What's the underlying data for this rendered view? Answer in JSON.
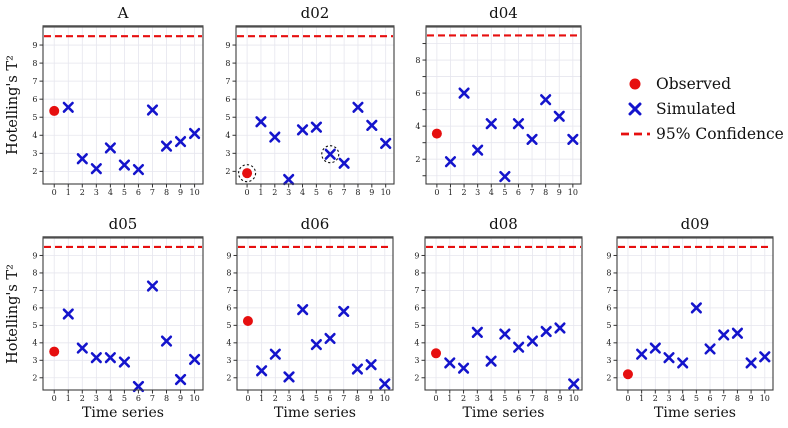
{
  "figure": {
    "background": "#ffffff"
  },
  "legend": {
    "items": [
      {
        "name": "observed",
        "marker": "filled-circle-icon",
        "label": "Observed"
      },
      {
        "name": "simulated",
        "marker": "x-cross-icon",
        "label": "Simulated"
      },
      {
        "name": "confidence",
        "marker": "dashed-line-icon",
        "label": "95% Confidence"
      }
    ]
  },
  "chart_data": {
    "type": "scatter",
    "ylabel": "Hotelling's T²",
    "shared_xlabel": "Time series",
    "confidence_level": "95%",
    "confidence_value": 9.49,
    "xticks": [
      0,
      1,
      2,
      3,
      4,
      5,
      6,
      7,
      8,
      9,
      10
    ],
    "xlim": [
      -0.8,
      10.6
    ],
    "grid": true,
    "legend_position": "right-of-top-row",
    "colors": {
      "observed": "#e60f0f",
      "simulated": "#1414cc",
      "confidence": "#e60f0f",
      "grid": "#e6e6ee",
      "spine": "#3d3d3d"
    },
    "subplots": [
      {
        "id": "A",
        "title": "A",
        "row": 1,
        "observed": 5.35,
        "simulated_x": [
          1,
          2,
          3,
          4,
          5,
          6,
          7,
          8,
          9,
          10
        ],
        "simulated": [
          5.55,
          2.7,
          2.15,
          3.3,
          2.35,
          2.1,
          5.4,
          3.4,
          3.65,
          4.1
        ],
        "ylim": [
          1.3,
          10.0
        ],
        "ytick_values": [
          2,
          3,
          4,
          5,
          6,
          7,
          8,
          9
        ],
        "ytick_labels": [
          "2",
          "3",
          "4",
          "5",
          "6",
          "7",
          "8",
          "9"
        ],
        "xlabel": "",
        "annotated_points": []
      },
      {
        "id": "d02",
        "title": "d02",
        "row": 1,
        "observed": 1.9,
        "simulated_x": [
          1,
          2,
          3,
          4,
          5,
          6,
          7,
          8,
          9,
          10
        ],
        "simulated": [
          4.75,
          3.9,
          1.55,
          4.3,
          4.45,
          2.95,
          2.45,
          5.55,
          4.55,
          3.55
        ],
        "ylim": [
          1.3,
          10.0
        ],
        "ytick_values": [
          2,
          3,
          4,
          5,
          6,
          7,
          8,
          9
        ],
        "ytick_labels": [
          "2",
          "3",
          "4",
          "5",
          "6",
          "7",
          "8",
          "9"
        ],
        "xlabel": "",
        "annotated_points": [
          {
            "x": 0,
            "y": 1.9
          },
          {
            "x": 6,
            "y": 2.95
          }
        ]
      },
      {
        "id": "d04",
        "title": "d04",
        "row": 1,
        "observed": 3.55,
        "simulated_x": [
          1,
          2,
          3,
          4,
          5,
          6,
          7,
          8,
          9,
          10
        ],
        "simulated": [
          1.85,
          6.0,
          2.55,
          4.15,
          0.95,
          4.15,
          3.2,
          5.6,
          4.6,
          3.2
        ],
        "ylim": [
          0.5,
          10.0
        ],
        "ytick_values": [
          1,
          2,
          3,
          4,
          5,
          6,
          7,
          8,
          9
        ],
        "ytick_labels": [
          "",
          "2",
          "",
          "4",
          "",
          "6",
          "",
          "8",
          ""
        ],
        "xlabel": "",
        "annotated_points": []
      },
      {
        "id": "d05",
        "title": "d05",
        "row": 2,
        "observed": 3.5,
        "simulated_x": [
          1,
          2,
          3,
          4,
          5,
          6,
          7,
          8,
          9,
          10
        ],
        "simulated": [
          5.65,
          3.7,
          3.15,
          3.15,
          2.9,
          1.5,
          7.25,
          4.1,
          1.9,
          3.05
        ],
        "ylim": [
          1.3,
          10.0
        ],
        "ytick_values": [
          2,
          3,
          4,
          5,
          6,
          7,
          8,
          9
        ],
        "ytick_labels": [
          "2",
          "3",
          "4",
          "5",
          "6",
          "7",
          "8",
          "9"
        ],
        "xlabel": "Time series",
        "annotated_points": []
      },
      {
        "id": "d06",
        "title": "d06",
        "row": 2,
        "observed": 5.25,
        "simulated_x": [
          1,
          2,
          3,
          4,
          5,
          6,
          7,
          8,
          9,
          10
        ],
        "simulated": [
          2.4,
          3.35,
          2.05,
          5.9,
          3.9,
          4.25,
          5.8,
          2.5,
          2.75,
          1.65
        ],
        "ylim": [
          1.3,
          10.0
        ],
        "ytick_values": [
          2,
          3,
          4,
          5,
          6,
          7,
          8,
          9
        ],
        "ytick_labels": [
          "2",
          "3",
          "4",
          "5",
          "6",
          "7",
          "8",
          "9"
        ],
        "xlabel": "Time series",
        "annotated_points": []
      },
      {
        "id": "d08",
        "title": "d08",
        "row": 2,
        "observed": 3.4,
        "simulated_x": [
          1,
          2,
          3,
          4,
          5,
          6,
          7,
          8,
          9,
          10
        ],
        "simulated": [
          2.85,
          2.55,
          4.6,
          2.95,
          4.5,
          3.75,
          4.1,
          4.65,
          4.85,
          1.65
        ],
        "ylim": [
          1.3,
          10.0
        ],
        "ytick_values": [
          2,
          3,
          4,
          5,
          6,
          7,
          8,
          9
        ],
        "ytick_labels": [
          "2",
          "3",
          "4",
          "5",
          "6",
          "7",
          "8",
          "9"
        ],
        "xlabel": "Time series",
        "annotated_points": []
      },
      {
        "id": "d09",
        "title": "d09",
        "row": 2,
        "observed": 2.2,
        "simulated_x": [
          1,
          2,
          3,
          4,
          5,
          6,
          7,
          8,
          9,
          10
        ],
        "simulated": [
          3.35,
          3.7,
          3.15,
          2.85,
          6.0,
          3.65,
          4.45,
          4.55,
          2.85,
          3.2
        ],
        "ylim": [
          1.3,
          10.0
        ],
        "ytick_values": [
          2,
          3,
          4,
          5,
          6,
          7,
          8,
          9
        ],
        "ytick_labels": [
          "2",
          "3",
          "4",
          "5",
          "6",
          "7",
          "8",
          "9"
        ],
        "xlabel": "Time series",
        "annotated_points": []
      }
    ]
  }
}
